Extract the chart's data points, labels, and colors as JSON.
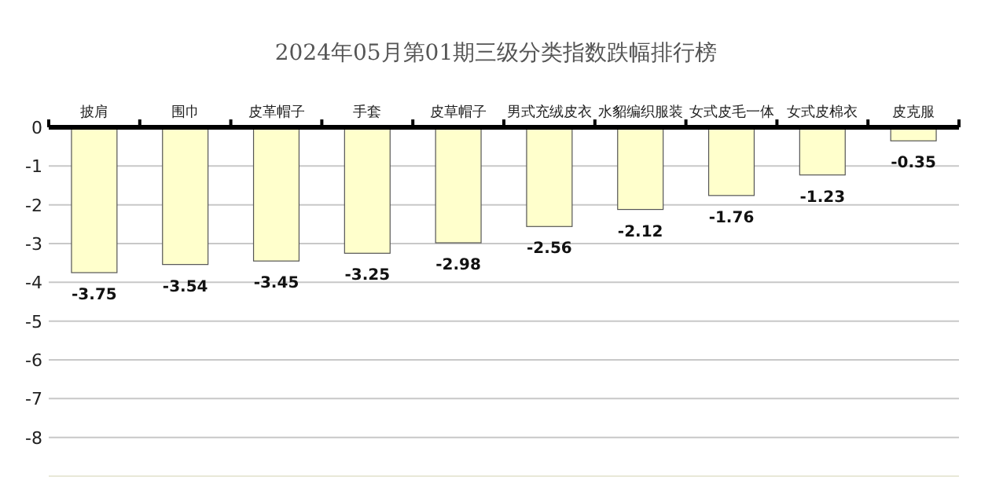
{
  "chart_data": {
    "type": "bar",
    "title": "2024年05月第01期三级分类指数跌幅排行榜",
    "categories": [
      "披肩",
      "围巾",
      "皮革帽子",
      "手套",
      "皮草帽子",
      "男式充绒皮衣",
      "水貂编织服装",
      "女式皮毛一体",
      "女式皮棉衣",
      "皮克服"
    ],
    "values": [
      -3.75,
      -3.54,
      -3.45,
      -3.25,
      -2.98,
      -2.56,
      -2.12,
      -1.76,
      -1.23,
      -0.35
    ],
    "color": "#ffffcc",
    "ylim": [
      -9,
      0
    ],
    "yticks": [
      0,
      -1,
      -2,
      -3,
      -4,
      -5,
      -6,
      -7,
      -8
    ],
    "grid": "y",
    "data_labels": true
  }
}
